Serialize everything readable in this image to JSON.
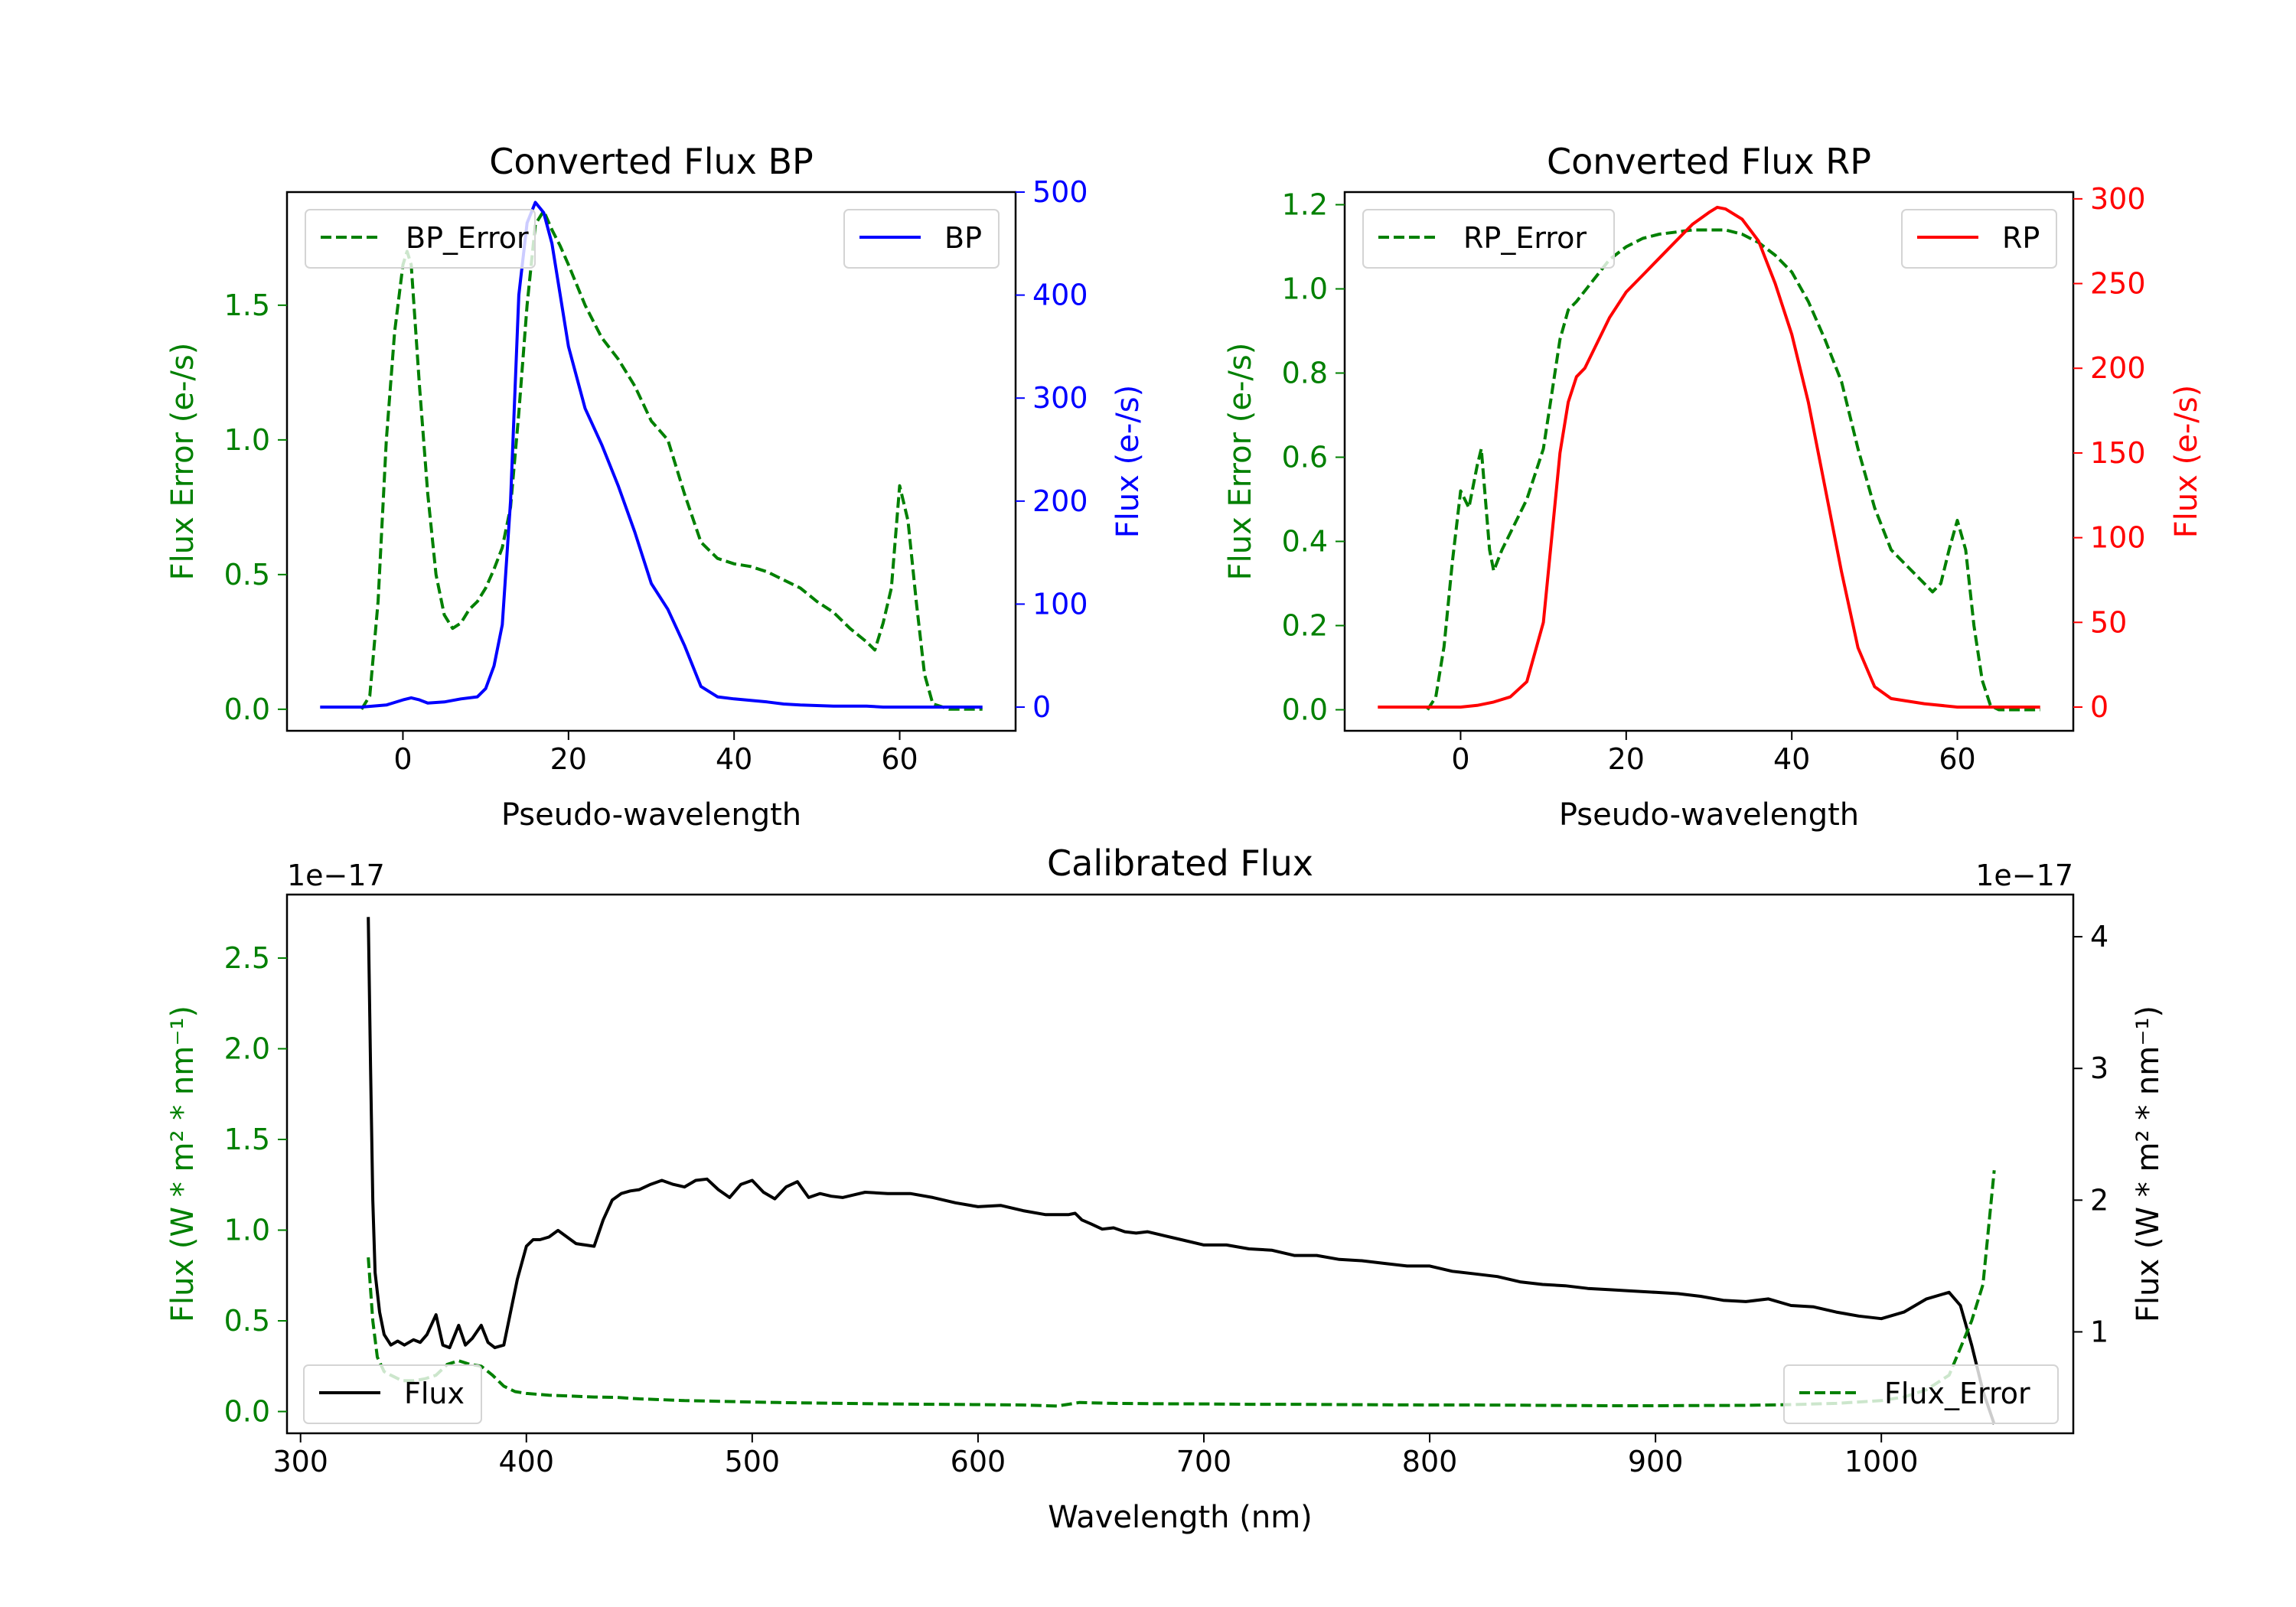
{
  "colors": {
    "bp": "#0000ff",
    "rp": "#ff0000",
    "error": "#008000",
    "flux": "#000000"
  },
  "chart_data": [
    {
      "id": "bp",
      "type": "line",
      "title": "Converted Flux BP",
      "xlabel": "Pseudo-wavelength",
      "ylabel_left": "Flux Error (e-/s)",
      "ylabel_right": "Flux (e-/s)",
      "xlim": [
        -14,
        74
      ],
      "ylim_left": [
        -0.08,
        1.92
      ],
      "ylim_right": [
        -23,
        500
      ],
      "xticks": [
        0,
        20,
        40,
        60
      ],
      "yticks_left": [
        0.0,
        0.5,
        1.0,
        1.5
      ],
      "yticks_right": [
        0,
        100,
        200,
        300,
        400,
        500
      ],
      "xtick_labels": [
        "0",
        "20",
        "40",
        "60"
      ],
      "ytick_labels_left": [
        "0.0",
        "0.5",
        "1.0",
        "1.5"
      ],
      "ytick_labels_right": [
        "0",
        "100",
        "200",
        "300",
        "400",
        "500"
      ],
      "legend_left_label": "BP_Error",
      "legend_right_label": "BP",
      "series": [
        {
          "name": "BP_Error",
          "axis": "left",
          "style": "dashed",
          "color": "#008000",
          "x": [
            -5,
            -4,
            -3,
            -2,
            -1,
            0,
            0.5,
            1,
            2,
            3,
            4,
            5,
            6,
            7,
            8,
            9,
            10,
            11,
            12,
            13,
            14,
            15,
            16,
            17,
            18,
            19,
            20,
            22,
            24,
            26,
            28,
            30,
            32,
            34,
            36,
            38,
            40,
            42,
            44,
            46,
            48,
            50,
            52,
            54,
            56,
            57,
            58,
            59,
            60,
            61,
            62,
            63,
            64,
            66,
            68,
            70
          ],
          "y": [
            0.0,
            0.05,
            0.4,
            1.0,
            1.4,
            1.65,
            1.7,
            1.65,
            1.2,
            0.8,
            0.5,
            0.35,
            0.3,
            0.32,
            0.37,
            0.4,
            0.45,
            0.52,
            0.6,
            0.75,
            1.1,
            1.5,
            1.8,
            1.85,
            1.78,
            1.72,
            1.65,
            1.5,
            1.38,
            1.3,
            1.2,
            1.07,
            1.0,
            0.8,
            0.62,
            0.56,
            0.54,
            0.53,
            0.51,
            0.48,
            0.45,
            0.4,
            0.36,
            0.3,
            0.25,
            0.22,
            0.32,
            0.45,
            0.83,
            0.7,
            0.4,
            0.13,
            0.02,
            0.0,
            0.0,
            0.0
          ]
        },
        {
          "name": "BP",
          "axis": "right",
          "style": "solid",
          "color": "#0000ff",
          "x": [
            -10,
            -5,
            -2,
            0,
            1,
            2,
            3,
            5,
            7,
            9,
            10,
            11,
            12,
            13,
            14,
            15,
            16,
            17,
            18,
            19,
            20,
            22,
            24,
            26,
            28,
            30,
            32,
            34,
            36,
            38,
            40,
            44,
            46,
            48,
            52,
            56,
            58,
            60,
            65,
            70
          ],
          "y": [
            0,
            0,
            2,
            7,
            9,
            7,
            4,
            5,
            8,
            10,
            18,
            40,
            80,
            200,
            400,
            470,
            490,
            480,
            450,
            400,
            350,
            290,
            255,
            215,
            170,
            120,
            95,
            60,
            20,
            10,
            8,
            5,
            3,
            2,
            1,
            1,
            0,
            0,
            0,
            0
          ]
        }
      ]
    },
    {
      "id": "rp",
      "type": "line",
      "title": "Converted Flux RP",
      "xlabel": "Pseudo-wavelength",
      "ylabel_left": "Flux Error (e-/s)",
      "ylabel_right": "Flux (e-/s)",
      "xlim": [
        -14,
        74
      ],
      "ylim_left": [
        -0.05,
        1.23
      ],
      "ylim_right": [
        -14,
        304
      ],
      "xticks": [
        0,
        20,
        40,
        60
      ],
      "yticks_left": [
        0.0,
        0.2,
        0.4,
        0.6,
        0.8,
        1.0,
        1.2
      ],
      "yticks_right": [
        0,
        50,
        100,
        150,
        200,
        250,
        300
      ],
      "xtick_labels": [
        "0",
        "20",
        "40",
        "60"
      ],
      "ytick_labels_left": [
        "0.0",
        "0.2",
        "0.4",
        "0.6",
        "0.8",
        "1.0",
        "1.2"
      ],
      "ytick_labels_right": [
        "0",
        "50",
        "100",
        "150",
        "200",
        "250",
        "300"
      ],
      "legend_left_label": "RP_Error",
      "legend_right_label": "RP",
      "series": [
        {
          "name": "RP_Error",
          "axis": "left",
          "style": "dashed",
          "color": "#008000",
          "x": [
            -4,
            -3,
            -2,
            -1,
            0,
            1,
            2,
            2.5,
            3,
            3.5,
            4,
            5,
            6,
            8,
            10,
            11,
            12,
            13,
            14,
            16,
            18,
            20,
            22,
            24,
            26,
            28,
            30,
            32,
            34,
            36,
            38,
            40,
            42,
            44,
            46,
            48,
            50,
            52,
            54,
            56,
            57,
            58,
            59,
            60,
            61,
            62,
            63,
            64,
            65,
            70
          ],
          "y": [
            0.0,
            0.03,
            0.15,
            0.35,
            0.52,
            0.48,
            0.58,
            0.62,
            0.5,
            0.38,
            0.33,
            0.38,
            0.42,
            0.5,
            0.62,
            0.75,
            0.88,
            0.95,
            0.97,
            1.02,
            1.07,
            1.1,
            1.12,
            1.13,
            1.135,
            1.14,
            1.14,
            1.14,
            1.13,
            1.11,
            1.08,
            1.04,
            0.97,
            0.88,
            0.78,
            0.62,
            0.48,
            0.38,
            0.34,
            0.3,
            0.28,
            0.3,
            0.38,
            0.45,
            0.38,
            0.2,
            0.07,
            0.01,
            0.0,
            0.0
          ]
        },
        {
          "name": "RP",
          "axis": "right",
          "style": "solid",
          "color": "#ff0000",
          "x": [
            -10,
            -5,
            0,
            2,
            4,
            6,
            8,
            10,
            11,
            12,
            13,
            14,
            15,
            16,
            18,
            20,
            22,
            24,
            26,
            28,
            30,
            31,
            32,
            34,
            36,
            38,
            40,
            42,
            44,
            46,
            48,
            50,
            52,
            56,
            60,
            65,
            70
          ],
          "y": [
            0,
            0,
            0,
            1,
            3,
            6,
            15,
            50,
            100,
            150,
            180,
            195,
            200,
            210,
            230,
            245,
            255,
            265,
            275,
            285,
            292,
            295,
            294,
            288,
            275,
            250,
            220,
            180,
            130,
            80,
            35,
            12,
            5,
            2,
            0,
            0,
            0
          ]
        }
      ]
    },
    {
      "id": "calibrated",
      "type": "line",
      "title": "Calibrated Flux",
      "xlabel": "Wavelength (nm)",
      "ylabel_left": "Flux (W * m² * nm⁻¹)",
      "ylabel_right": "Flux (W * m² * nm⁻¹)",
      "offset_left": "1e−17",
      "offset_right": "1e−17",
      "xlim": [
        294,
        1085
      ],
      "ylim_left": [
        -0.12,
        2.85
      ],
      "ylim_right": [
        0.23,
        4.32
      ],
      "xticks": [
        300,
        400,
        500,
        600,
        700,
        800,
        900,
        1000
      ],
      "yticks_left": [
        0.0,
        0.5,
        1.0,
        1.5,
        2.0,
        2.5
      ],
      "yticks_right": [
        1,
        2,
        3,
        4
      ],
      "xtick_labels": [
        "300",
        "400",
        "500",
        "600",
        "700",
        "800",
        "900",
        "1000"
      ],
      "ytick_labels_left": [
        "0.0",
        "0.5",
        "1.0",
        "1.5",
        "2.0",
        "2.5"
      ],
      "ytick_labels_right": [
        "1",
        "2",
        "3",
        "4"
      ],
      "legend_left_label": "Flux",
      "legend_right_label": "Flux_Error",
      "series": [
        {
          "name": "Flux",
          "axis": "right",
          "style": "solid",
          "color": "#000000",
          "x": [
            330,
            331,
            332,
            333,
            335,
            337,
            340,
            343,
            346,
            350,
            353,
            356,
            360,
            363,
            366,
            370,
            373,
            376,
            380,
            383,
            386,
            390,
            393,
            396,
            400,
            403,
            406,
            410,
            414,
            418,
            422,
            426,
            430,
            434,
            438,
            442,
            446,
            450,
            455,
            460,
            465,
            470,
            475,
            480,
            485,
            490,
            495,
            500,
            505,
            510,
            515,
            520,
            525,
            530,
            535,
            540,
            545,
            550,
            560,
            570,
            580,
            590,
            600,
            610,
            620,
            630,
            640,
            643,
            646,
            650,
            655,
            660,
            665,
            670,
            675,
            680,
            690,
            700,
            710,
            720,
            730,
            740,
            750,
            760,
            770,
            780,
            790,
            800,
            810,
            820,
            830,
            840,
            850,
            860,
            870,
            880,
            890,
            900,
            910,
            920,
            930,
            940,
            950,
            960,
            970,
            980,
            990,
            1000,
            1010,
            1020,
            1030,
            1035,
            1040,
            1045,
            1050
          ],
          "y": [
            4.15,
            3.0,
            2.0,
            1.45,
            1.15,
            0.98,
            0.9,
            0.93,
            0.9,
            0.94,
            0.92,
            0.98,
            1.13,
            0.9,
            0.88,
            1.05,
            0.9,
            0.95,
            1.05,
            0.92,
            0.88,
            0.9,
            1.15,
            1.4,
            1.65,
            1.7,
            1.7,
            1.72,
            1.77,
            1.72,
            1.67,
            1.66,
            1.65,
            1.85,
            2.0,
            2.05,
            2.07,
            2.08,
            2.12,
            2.15,
            2.12,
            2.1,
            2.15,
            2.16,
            2.08,
            2.02,
            2.12,
            2.15,
            2.06,
            2.01,
            2.1,
            2.14,
            2.02,
            2.05,
            2.03,
            2.02,
            2.04,
            2.06,
            2.05,
            2.05,
            2.02,
            1.98,
            1.95,
            1.96,
            1.92,
            1.89,
            1.89,
            1.9,
            1.85,
            1.82,
            1.78,
            1.79,
            1.76,
            1.75,
            1.76,
            1.74,
            1.7,
            1.66,
            1.66,
            1.63,
            1.62,
            1.58,
            1.58,
            1.55,
            1.54,
            1.52,
            1.5,
            1.5,
            1.46,
            1.44,
            1.42,
            1.38,
            1.36,
            1.35,
            1.33,
            1.32,
            1.31,
            1.3,
            1.29,
            1.27,
            1.24,
            1.23,
            1.25,
            1.2,
            1.19,
            1.15,
            1.12,
            1.1,
            1.15,
            1.25,
            1.3,
            1.2,
            0.9,
            0.55,
            0.3
          ]
        },
        {
          "name": "Flux_Error",
          "axis": "left",
          "style": "dashed",
          "color": "#008000",
          "x": [
            330,
            332,
            334,
            337,
            340,
            345,
            350,
            355,
            360,
            365,
            370,
            375,
            380,
            385,
            390,
            395,
            400,
            410,
            420,
            430,
            440,
            450,
            460,
            470,
            480,
            490,
            500,
            520,
            540,
            560,
            580,
            600,
            620,
            635,
            640,
            645,
            650,
            660,
            680,
            700,
            720,
            740,
            760,
            780,
            800,
            820,
            840,
            860,
            880,
            900,
            920,
            940,
            960,
            980,
            1000,
            1010,
            1020,
            1030,
            1035,
            1040,
            1045,
            1050
          ],
          "y": [
            0.85,
            0.5,
            0.3,
            0.22,
            0.2,
            0.17,
            0.17,
            0.18,
            0.2,
            0.26,
            0.28,
            0.26,
            0.25,
            0.2,
            0.14,
            0.11,
            0.1,
            0.09,
            0.085,
            0.08,
            0.078,
            0.07,
            0.065,
            0.06,
            0.058,
            0.055,
            0.052,
            0.048,
            0.045,
            0.042,
            0.04,
            0.038,
            0.036,
            0.03,
            0.04,
            0.05,
            0.048,
            0.045,
            0.043,
            0.042,
            0.04,
            0.04,
            0.038,
            0.037,
            0.036,
            0.036,
            0.035,
            0.033,
            0.032,
            0.032,
            0.033,
            0.034,
            0.038,
            0.045,
            0.06,
            0.08,
            0.12,
            0.2,
            0.35,
            0.5,
            0.7,
            1.33
          ]
        }
      ]
    }
  ]
}
